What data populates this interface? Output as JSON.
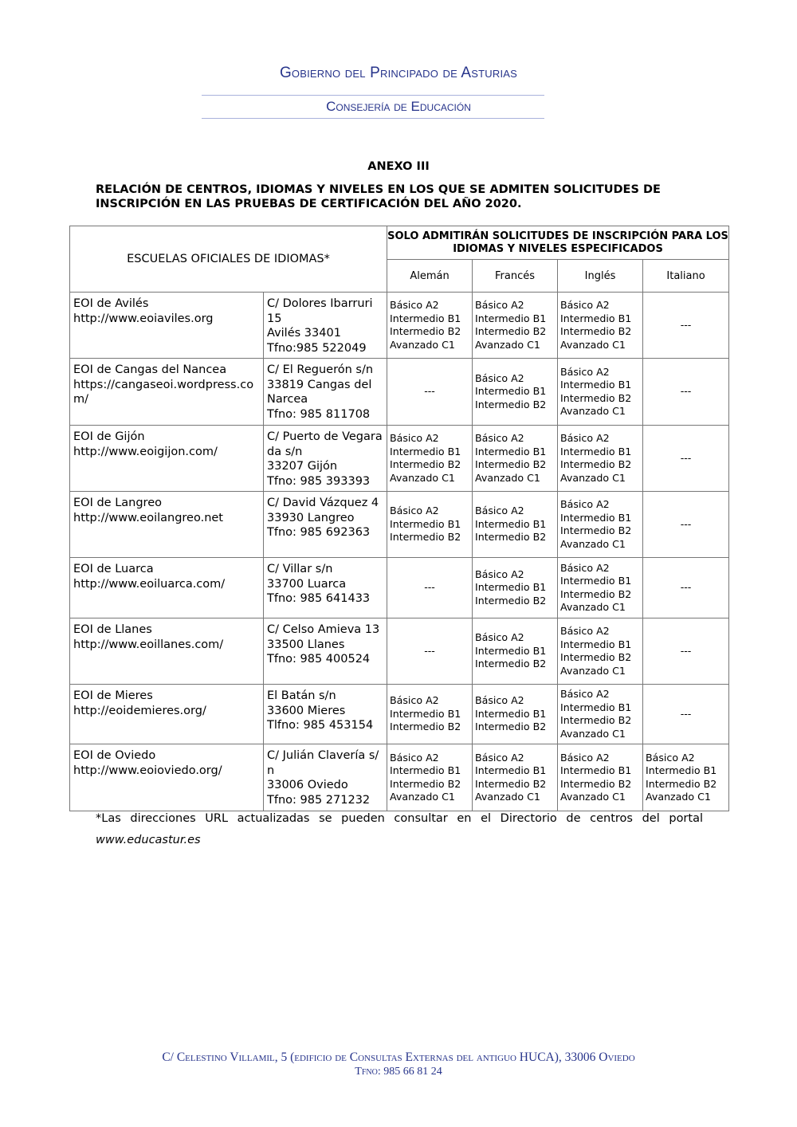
{
  "header": {
    "government": "Gobierno del Principado de Asturias",
    "department": "Consejería de Educación"
  },
  "document": {
    "title": "ANEXO III",
    "subtitle": "RELACIÓN DE CENTROS, IDIOMAS Y NIVELES EN LOS QUE SE ADMITEN SOLICITUDES DE INSCRIPCIÓN EN LAS PRUEBAS DE CERTIFICACIÓN DEL AÑO 2020."
  },
  "table": {
    "col_schools": "ESCUELAS OFICIALES DE IDIOMAS*",
    "col_restriction": "SOLO ADMITIRÁN SOLICITUDES DE INSCRIPCIÓN PARA LOS IDIOMAS Y NIVELES ESPECIFICADOS",
    "languages": [
      "Alemán",
      "Francés",
      "Inglés",
      "Italiano"
    ],
    "rows": [
      {
        "school": [
          "EOI de Avilés",
          "http://www.eoiaviles.org"
        ],
        "address": [
          "C/ Dolores Ibarruri 15",
          "Avilés 33401",
          "Tfno:985 522049"
        ],
        "levels": [
          [
            "Básico A2",
            "Intermedio B1",
            "Intermedio B2",
            "Avanzado C1"
          ],
          [
            "Básico A2",
            "Intermedio B1",
            "Intermedio B2",
            "Avanzado C1"
          ],
          [
            "Básico A2",
            "Intermedio B1",
            "Intermedio B2",
            "Avanzado C1"
          ],
          [
            "---"
          ]
        ]
      },
      {
        "school": [
          "EOI de Cangas del Nancea",
          "https://cangaseoi.wordpress.com/"
        ],
        "address": [
          "C/ El Reguerón s/n",
          "33819 Cangas del Narcea",
          "Tfno: 985 811708"
        ],
        "levels": [
          [
            "---"
          ],
          [
            "Básico A2",
            "Intermedio B1",
            "Intermedio B2"
          ],
          [
            "Básico A2",
            "Intermedio B1",
            "Intermedio B2",
            "Avanzado C1"
          ],
          [
            "---"
          ]
        ]
      },
      {
        "school": [
          "EOI de Gijón",
          "http://www.eoigijon.com/"
        ],
        "address": [
          "C/ Puerto de Vegarada s/n",
          "33207 Gijón",
          "Tfno: 985 393393"
        ],
        "levels": [
          [
            "Básico A2",
            "Intermedio B1",
            "Intermedio B2",
            "Avanzado C1"
          ],
          [
            "Básico A2",
            "Intermedio B1",
            "Intermedio B2",
            "Avanzado C1"
          ],
          [
            "Básico A2",
            "Intermedio B1",
            "Intermedio B2",
            "Avanzado C1"
          ],
          [
            "---"
          ]
        ]
      },
      {
        "school": [
          "EOI de Langreo",
          "http://www.eoilangreo.net"
        ],
        "address": [
          "C/ David Vázquez 4",
          "33930 Langreo",
          "Tfno: 985 692363"
        ],
        "levels": [
          [
            "Básico A2",
            "Intermedio B1",
            "Intermedio B2"
          ],
          [
            "Básico A2",
            "Intermedio B1",
            "Intermedio B2"
          ],
          [
            "Básico A2",
            "Intermedio B1",
            "Intermedio B2",
            "Avanzado C1"
          ],
          [
            "---"
          ]
        ]
      },
      {
        "school": [
          "EOI de Luarca",
          "http://www.eoiluarca.com/"
        ],
        "address": [
          "C/ Villar s/n",
          "33700 Luarca",
          "Tfno: 985 641433"
        ],
        "levels": [
          [
            "---"
          ],
          [
            "Básico A2",
            "Intermedio B1",
            "Intermedio B2"
          ],
          [
            "Básico A2",
            "Intermedio B1",
            "Intermedio B2",
            "Avanzado C1"
          ],
          [
            "---"
          ]
        ]
      },
      {
        "school": [
          "EOI de Llanes",
          "http://www.eoillanes.com/"
        ],
        "address": [
          "C/ Celso Amieva 13",
          "33500 Llanes",
          "Tfno: 985 400524"
        ],
        "levels": [
          [
            "---"
          ],
          [
            "Básico A2",
            "Intermedio B1",
            "Intermedio B2"
          ],
          [
            "Básico A2",
            "Intermedio B1",
            "Intermedio B2",
            "Avanzado C1"
          ],
          [
            "---"
          ]
        ]
      },
      {
        "school": [
          "EOI de Mieres",
          "http://eoidemieres.org/"
        ],
        "address": [
          "El Batán s/n",
          "33600 Mieres",
          "Tlfno: 985 453154"
        ],
        "levels": [
          [
            "Básico A2",
            "Intermedio B1",
            "Intermedio B2"
          ],
          [
            "Básico A2",
            "Intermedio B1",
            "Intermedio B2"
          ],
          [
            "Básico A2",
            "Intermedio B1",
            "Intermedio B2",
            "Avanzado C1"
          ],
          [
            "---"
          ]
        ]
      },
      {
        "school": [
          "EOI de Oviedo",
          "http://www.eoioviedo.org/"
        ],
        "address": [
          "C/ Julián Clavería s/n",
          "33006 Oviedo",
          "Tfno: 985 271232"
        ],
        "levels": [
          [
            "Básico A2",
            "Intermedio B1",
            "Intermedio B2",
            "Avanzado C1"
          ],
          [
            "Básico A2",
            "Intermedio B1",
            "Intermedio B2",
            "Avanzado C1"
          ],
          [
            "Básico A2",
            "Intermedio B1",
            "Intermedio B2",
            "Avanzado C1"
          ],
          [
            "Básico A2",
            "Intermedio B1",
            "Intermedio B2",
            "Avanzado C1"
          ]
        ]
      }
    ]
  },
  "footnote": {
    "text": "*Las direcciones URL actualizadas se pueden consultar en el Directorio de centros del portal",
    "url": "www.educastur.es"
  },
  "footer": {
    "address": "C/ Celestino Villamil, 5 (edificio de Consultas Externas del antiguo HUCA), 33006 Oviedo",
    "phone": "Tfno: 985 66 81 24"
  },
  "colors": {
    "header_blue": "#27348b",
    "rule": "#a9b2dc",
    "border": "#777777"
  }
}
